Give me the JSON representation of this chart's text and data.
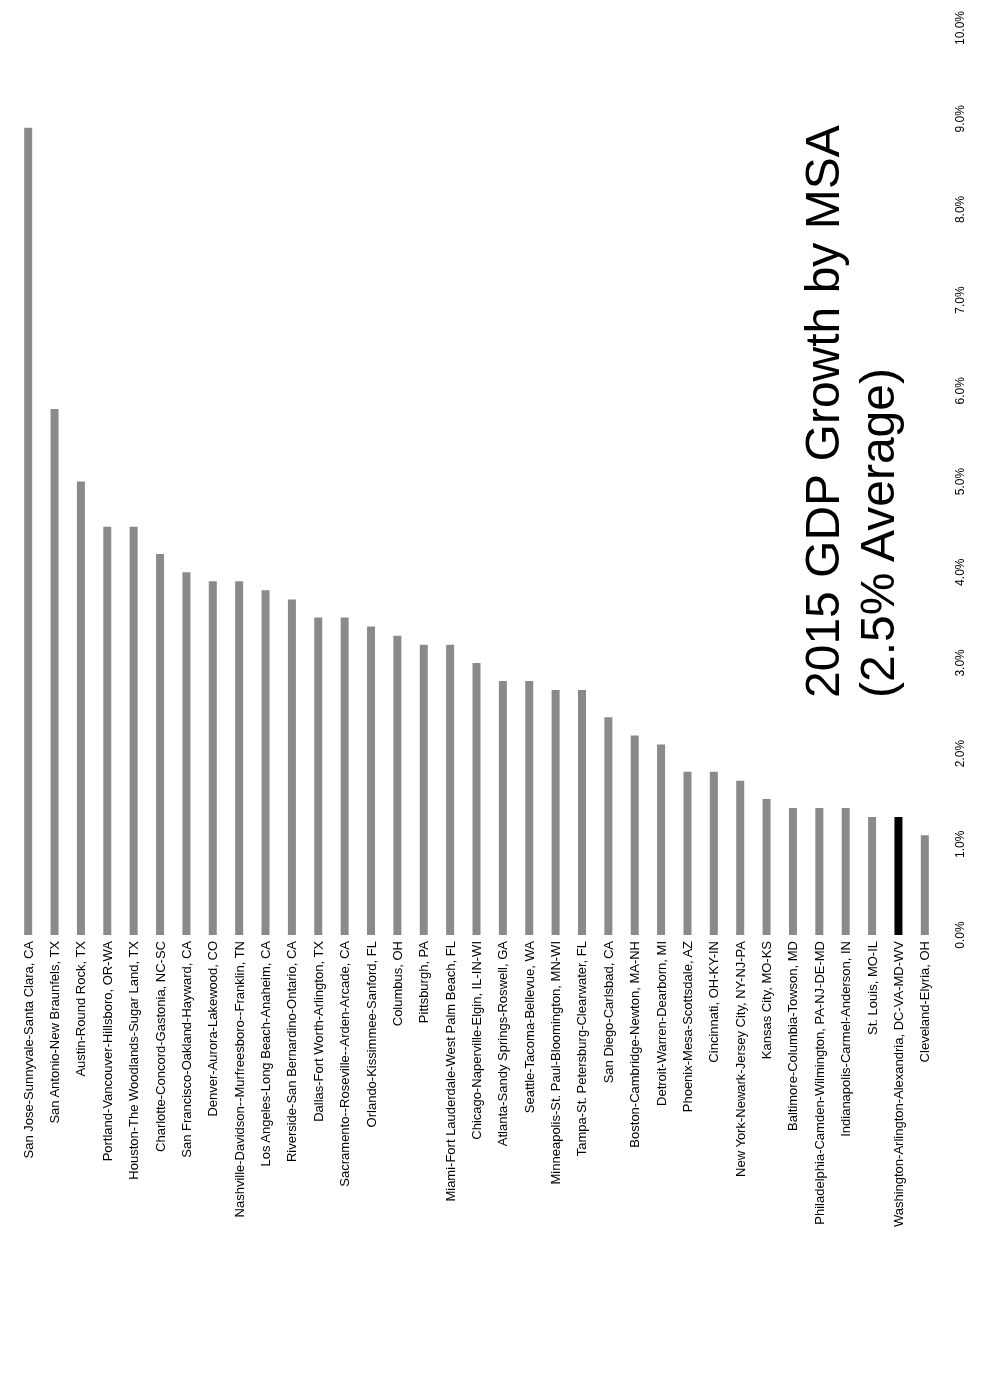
{
  "chart_data": {
    "type": "bar",
    "title": "2015 GDP Growth by MSA",
    "subtitle": "(2.5% Average)",
    "categories": [
      "San Jose-Sunnyvale-Santa Clara, CA",
      "San Antonio-New Braunfels, TX",
      "Austin-Round Rock, TX",
      "Portland-Vancouver-Hillsboro, OR-WA",
      "Houston-The Woodlands-Sugar Land, TX",
      "Charlotte-Concord-Gastonia, NC-SC",
      "San Francisco-Oakland-Hayward, CA",
      "Denver-Aurora-Lakewood, CO",
      "Nashville-Davidson--Murfreesboro--Franklin, TN",
      "Los Angeles-Long Beach-Anaheim, CA",
      "Riverside-San Bernardino-Ontario, CA",
      "Dallas-Fort Worth-Arlington, TX",
      "Sacramento--Roseville--Arden-Arcade, CA",
      "Orlando-Kissimmee-Sanford, FL",
      "Columbus, OH",
      "Pittsburgh, PA",
      "Miami-Fort Lauderdale-West Palm Beach, FL",
      "Chicago-Naperville-Elgin, IL-IN-WI",
      "Atlanta-Sandy Springs-Roswell, GA",
      "Seattle-Tacoma-Bellevue, WA",
      "Minneapolis-St. Paul-Bloomington, MN-WI",
      "Tampa-St. Petersburg-Clearwater, FL",
      "San Diego-Carlsbad, CA",
      "Boston-Cambridge-Newton, MA-NH",
      "Detroit-Warren-Dearborn, MI",
      "Phoenix-Mesa-Scottsdale, AZ",
      "Cincinnati, OH-KY-IN",
      "New York-Newark-Jersey City, NY-NJ-PA",
      "Kansas City, MO-KS",
      "Baltimore-Columbia-Towson, MD",
      "Philadelphia-Camden-Wilmington, PA-NJ-DE-MD",
      "Indianapolis-Carmel-Anderson, IN",
      "St. Louis, MO-IL",
      "Washington-Arlington-Alexandria, DC-VA-MD-WV",
      "Cleveland-Elyria, OH"
    ],
    "values": [
      8.9,
      5.8,
      5.0,
      4.5,
      4.5,
      4.2,
      4.0,
      3.9,
      3.9,
      3.8,
      3.7,
      3.5,
      3.5,
      3.4,
      3.3,
      3.2,
      3.2,
      3.0,
      2.8,
      2.8,
      2.7,
      2.7,
      2.4,
      2.2,
      2.1,
      1.8,
      1.8,
      1.7,
      1.5,
      1.4,
      1.4,
      1.4,
      1.3,
      1.3,
      1.1
    ],
    "colors": [
      "#8a8a8a",
      "#8a8a8a",
      "#8a8a8a",
      "#8a8a8a",
      "#8a8a8a",
      "#8a8a8a",
      "#8a8a8a",
      "#8a8a8a",
      "#8a8a8a",
      "#8a8a8a",
      "#8a8a8a",
      "#8a8a8a",
      "#8a8a8a",
      "#8a8a8a",
      "#8a8a8a",
      "#8a8a8a",
      "#8a8a8a",
      "#8a8a8a",
      "#8a8a8a",
      "#8a8a8a",
      "#8a8a8a",
      "#8a8a8a",
      "#8a8a8a",
      "#8a8a8a",
      "#8a8a8a",
      "#8a8a8a",
      "#8a8a8a",
      "#8a8a8a",
      "#8a8a8a",
      "#8a8a8a",
      "#8a8a8a",
      "#8a8a8a",
      "#8a8a8a",
      "#000000",
      "#8a8a8a"
    ],
    "ylim": [
      0,
      10
    ],
    "yticks": [
      {
        "value": 0,
        "label": "0.0%"
      },
      {
        "value": 1,
        "label": "1.0%"
      },
      {
        "value": 2,
        "label": "2.0%"
      },
      {
        "value": 3,
        "label": "3.0%"
      },
      {
        "value": 4,
        "label": "4.0%"
      },
      {
        "value": 5,
        "label": "5.0%"
      },
      {
        "value": 6,
        "label": "6.0%"
      },
      {
        "value": 7,
        "label": "7.0%"
      },
      {
        "value": 8,
        "label": "8.0%"
      },
      {
        "value": 9,
        "label": "9.0%"
      },
      {
        "value": 10,
        "label": "10.0%"
      }
    ],
    "grid": false
  }
}
